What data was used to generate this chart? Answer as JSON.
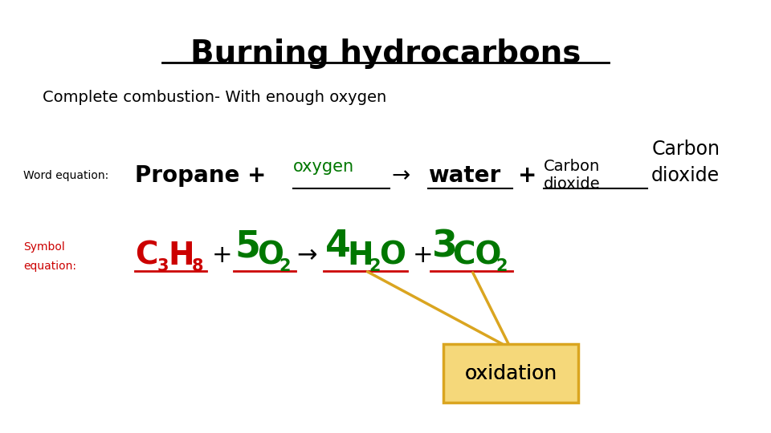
{
  "title": "Burning hydrocarbons",
  "subtitle": "Complete combustion- With enough oxygen",
  "word_label": "Word equation:",
  "symbol_label_1": "Symbol",
  "symbol_label_2": "equation:",
  "bg_color": "#ffffff",
  "black": "#000000",
  "red_color": "#cc0000",
  "green_color": "#007700",
  "orange_color": "#DAA520",
  "box_fill": "#F5D87A",
  "oxidation_text": "oxidation"
}
